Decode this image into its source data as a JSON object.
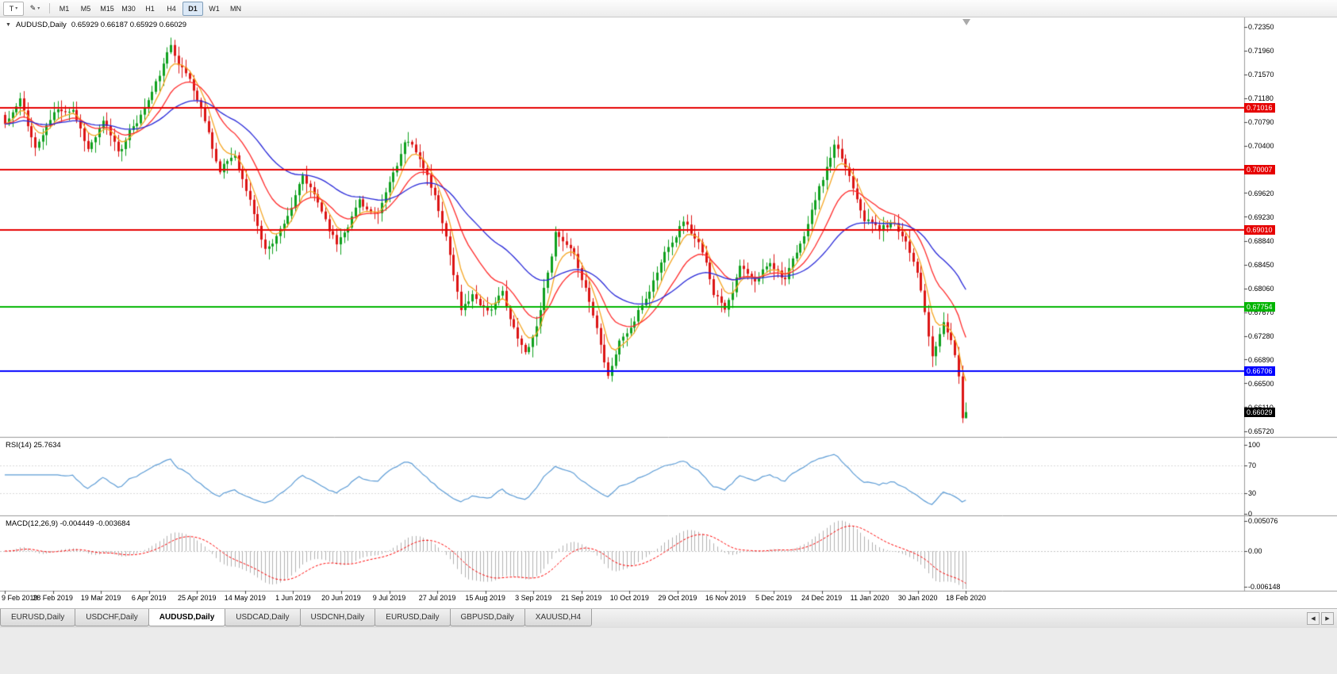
{
  "toolbar": {
    "tool_buttons": [
      {
        "label": "T",
        "caret": "▾"
      },
      {
        "label": "✎",
        "caret": "▾"
      }
    ],
    "timeframes": [
      "M1",
      "M5",
      "M15",
      "M30",
      "H1",
      "H4",
      "D1",
      "W1",
      "MN"
    ],
    "active_timeframe": "D1"
  },
  "chart": {
    "collapse_icon": "▼",
    "symbol": "AUDUSD,Daily",
    "ohlc": "0.65929 0.66187 0.65929 0.66029"
  },
  "price_axis": {
    "labels": [
      "0.72350",
      "0.71960",
      "0.71570",
      "0.71180",
      "0.70790",
      "0.70400",
      "0.69620",
      "0.69230",
      "0.68840",
      "0.68450",
      "0.68060",
      "0.67670",
      "0.67280",
      "0.66890",
      "0.66500",
      "0.66110",
      "0.65720"
    ]
  },
  "levels": [
    {
      "value": "0.71016",
      "color": "#e60000"
    },
    {
      "value": "0.70007",
      "color": "#e60000"
    },
    {
      "value": "0.69010",
      "color": "#e60000"
    },
    {
      "value": "0.67754",
      "color": "#00b400"
    },
    {
      "value": "0.66706",
      "color": "#0000ff"
    }
  ],
  "current_price": {
    "value": "0.66029",
    "color": "#000000"
  },
  "rsi": {
    "label": "RSI(14) 25.7634",
    "value": 25.7634,
    "axis": [
      "100",
      "70",
      "30",
      "0"
    ]
  },
  "macd": {
    "label": "MACD(12,26,9) -0.004449 -0.003684",
    "value": -0.004449,
    "signal_value": -0.003684,
    "axis": [
      "0.005076",
      "0.00",
      "-0.006148"
    ]
  },
  "date_axis": [
    "9 Feb 2019",
    "28 Feb 2019",
    "19 Mar 2019",
    "6 Apr 2019",
    "25 Apr 2019",
    "14 May 2019",
    "1 Jun 2019",
    "20 Jun 2019",
    "9 Jul 2019",
    "27 Jul 2019",
    "15 Aug 2019",
    "3 Sep 2019",
    "21 Sep 2019",
    "10 Oct 2019",
    "29 Oct 2019",
    "16 Nov 2019",
    "5 Dec 2019",
    "24 Dec 2019",
    "11 Jan 2020",
    "30 Jan 2020",
    "18 Feb 2020"
  ],
  "tabs": {
    "items": [
      {
        "label": "EURUSD,Daily",
        "active": false
      },
      {
        "label": "USDCHF,Daily",
        "active": false
      },
      {
        "label": "AUDUSD,Daily",
        "active": true
      },
      {
        "label": "USDCAD,Daily",
        "active": false
      },
      {
        "label": "USDCNH,Daily",
        "active": false
      },
      {
        "label": "EURUSD,Daily",
        "active": false
      },
      {
        "label": "GBPUSD,Daily",
        "active": false
      },
      {
        "label": "XAUUSD,H4",
        "active": false
      }
    ],
    "nav": {
      "left": "◀",
      "right": "▶"
    }
  },
  "chart_data": {
    "type": "candlestick",
    "symbol": "AUDUSD",
    "timeframe": "Daily",
    "ylim": [
      0.6572,
      0.7235
    ],
    "y_tick_step": 0.0039,
    "candle_count": 256,
    "x_label_step": 12.75,
    "last_candle": {
      "open": 0.65929,
      "high": 0.66187,
      "low": 0.65929,
      "close": 0.66029
    },
    "anchors": [
      [
        0,
        0.7075
      ],
      [
        4,
        0.711
      ],
      [
        8,
        0.7035
      ],
      [
        13,
        0.709
      ],
      [
        18,
        0.7105
      ],
      [
        22,
        0.704
      ],
      [
        26,
        0.7075
      ],
      [
        30,
        0.703
      ],
      [
        36,
        0.709
      ],
      [
        40,
        0.714
      ],
      [
        44,
        0.72
      ],
      [
        49,
        0.715
      ],
      [
        53,
        0.7085
      ],
      [
        57,
        0.7
      ],
      [
        61,
        0.7025
      ],
      [
        65,
        0.695
      ],
      [
        69,
        0.6868
      ],
      [
        73,
        0.6905
      ],
      [
        79,
        0.6985
      ],
      [
        84,
        0.693
      ],
      [
        88,
        0.688
      ],
      [
        94,
        0.6955
      ],
      [
        99,
        0.692
      ],
      [
        103,
        0.699
      ],
      [
        106,
        0.7042
      ],
      [
        110,
        0.702
      ],
      [
        114,
        0.695
      ],
      [
        118,
        0.686
      ],
      [
        121,
        0.677
      ],
      [
        124,
        0.6795
      ],
      [
        128,
        0.6775
      ],
      [
        132,
        0.6795
      ],
      [
        136,
        0.672
      ],
      [
        138,
        0.6695
      ],
      [
        141,
        0.6745
      ],
      [
        146,
        0.69
      ],
      [
        150,
        0.686
      ],
      [
        154,
        0.6805
      ],
      [
        158,
        0.672
      ],
      [
        160,
        0.6672
      ],
      [
        163,
        0.6725
      ],
      [
        166,
        0.6745
      ],
      [
        170,
        0.679
      ],
      [
        176,
        0.688
      ],
      [
        180,
        0.6925
      ],
      [
        184,
        0.688
      ],
      [
        188,
        0.68
      ],
      [
        191,
        0.678
      ],
      [
        195,
        0.6845
      ],
      [
        199,
        0.681
      ],
      [
        203,
        0.685
      ],
      [
        207,
        0.6828
      ],
      [
        211,
        0.687
      ],
      [
        215,
        0.695
      ],
      [
        220,
        0.7032
      ],
      [
        224,
        0.6985
      ],
      [
        228,
        0.693
      ],
      [
        232,
        0.6905
      ],
      [
        236,
        0.6915
      ],
      [
        239,
        0.689
      ],
      [
        242,
        0.6845
      ],
      [
        244,
        0.677
      ],
      [
        246,
        0.669
      ],
      [
        249,
        0.6748
      ],
      [
        251,
        0.6722
      ],
      [
        253,
        0.666
      ],
      [
        254,
        0.6593
      ],
      [
        255,
        0.66029
      ]
    ],
    "h_lines": [
      0.71016,
      0.70007,
      0.6901,
      0.67754,
      0.66706
    ],
    "overlays": [
      {
        "name": "ema-fast",
        "period": 6,
        "color": "#f5a623"
      },
      {
        "name": "ema-mid",
        "period": 16,
        "color": "#ff2a2a"
      },
      {
        "name": "ema-slow",
        "period": 40,
        "color": "#2828d8"
      }
    ],
    "indicators": [
      {
        "name": "RSI",
        "period": 14,
        "last_value": 25.7634
      },
      {
        "name": "MACD",
        "params": [
          12,
          26,
          9
        ],
        "last_value": -0.004449,
        "last_signal": -0.003684
      }
    ],
    "style": {
      "up": "#0fa01e",
      "down": "#dc1414",
      "rsi_line": "#5b9bd5",
      "macd_hist": "#b0b0b0",
      "macd_signal": "#ff0000"
    }
  }
}
